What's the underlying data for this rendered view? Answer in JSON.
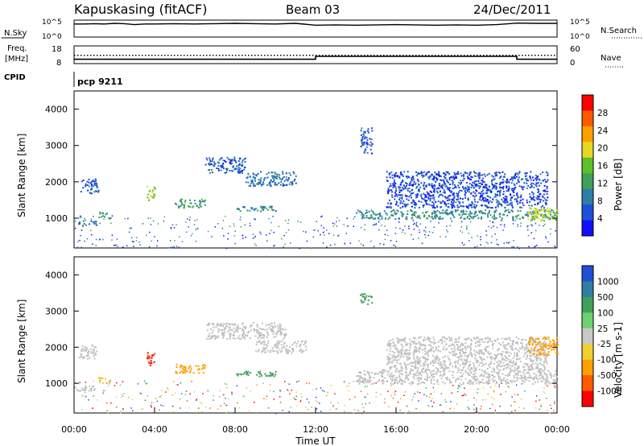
{
  "header": {
    "title": "Kapuskasing (fitACF)",
    "beam": "Beam 03",
    "date": "24/Dec/2011"
  },
  "summary": {
    "nsky_label": "N.Sky",
    "nsearch_label": "N.Search",
    "noise_ticks_left": [
      "10^5",
      "10^0"
    ],
    "noise_ticks_right": [
      "10^5",
      "10^0"
    ],
    "freq_label": "Freq.",
    "freq_unit": "[MHz]",
    "freq_ticks": [
      "18",
      "8"
    ],
    "nave_label": "Nave",
    "nave_ticks": [
      "60",
      "0"
    ],
    "cpid_label": "CPID",
    "cpid_value": "pcp 9211"
  },
  "colors": {
    "power": [
      "#1010ff",
      "#1f4fd6",
      "#2e7ea6",
      "#3fa05a",
      "#5ebf2a",
      "#e6d820",
      "#ff9f00",
      "#ff5a00",
      "#ff0000"
    ],
    "velocity": [
      "#ff0000",
      "#ff5a00",
      "#ff9f00",
      "#f0cf30",
      "#c8c8c8",
      "#6fd06f",
      "#3fa05a",
      "#2e7ea6",
      "#1f4fd6"
    ],
    "ground_scatter": "#c0c0c0"
  },
  "chart_data": [
    {
      "type": "line",
      "panel": "noise",
      "xlabel": "",
      "ylabel": "N.Sky",
      "x_range_hours": [
        0,
        24
      ],
      "series": [
        {
          "name": "N.Sky",
          "x": [
            0,
            0.5,
            1,
            1.5,
            2,
            2.5,
            3,
            3.5,
            4,
            5,
            6,
            7,
            8,
            9,
            10,
            11,
            12,
            13,
            14,
            15,
            16,
            17,
            18,
            19,
            20,
            21,
            22,
            23,
            24
          ],
          "values": [
            4,
            4,
            4.1,
            4,
            4.2,
            4.1,
            3.8,
            4,
            4,
            4.1,
            4,
            4.1,
            4.2,
            4.1,
            4,
            4.2,
            3.6,
            3.7,
            3.6,
            3.7,
            3.8,
            3.7,
            3.6,
            3.7,
            3.6,
            3.8,
            4.3,
            4.2,
            4.2
          ]
        }
      ]
    },
    {
      "type": "line",
      "panel": "frequency",
      "ylabel": "Freq. [MHz]",
      "ylim": [
        8,
        18
      ],
      "series": [
        {
          "name": "Freq.",
          "x": [
            0,
            12,
            12,
            22,
            22,
            24
          ],
          "values": [
            10.2,
            10.2,
            12,
            12,
            10.2,
            10.2
          ]
        }
      ]
    },
    {
      "type": "heatmap",
      "panel": "power",
      "ylabel": "Slant Range [km]",
      "ylim": [
        180,
        4500
      ],
      "yticks": [
        "4000",
        "3000",
        "2000",
        "1000"
      ],
      "colorbar_label": "Power [dB]",
      "colorbar_ticks": [
        "28",
        "24",
        "20",
        "16",
        "12",
        "8",
        "4"
      ],
      "patches": [
        {
          "t": [
            0.3,
            1.2
          ],
          "r": [
            1700,
            2100
          ],
          "v": 6
        },
        {
          "t": [
            0.2,
            1.1
          ],
          "r": [
            800,
            950
          ],
          "v": 8
        },
        {
          "t": [
            1.2,
            1.8
          ],
          "r": [
            1000,
            1200
          ],
          "v": 10
        },
        {
          "t": [
            3.6,
            4.0
          ],
          "r": [
            1500,
            1900
          ],
          "v": 18
        },
        {
          "t": [
            5.0,
            6.5
          ],
          "r": [
            1300,
            1550
          ],
          "v": 12
        },
        {
          "t": [
            6.5,
            8.5
          ],
          "r": [
            2250,
            2700
          ],
          "v": 6
        },
        {
          "t": [
            8.5,
            11.0
          ],
          "r": [
            1900,
            2300
          ],
          "v": 8
        },
        {
          "t": [
            8.0,
            10.0
          ],
          "r": [
            1200,
            1350
          ],
          "v": 9
        },
        {
          "t": [
            14.2,
            14.8
          ],
          "r": [
            2800,
            3500
          ],
          "v": 6
        },
        {
          "t": [
            14.0,
            24.0
          ],
          "r": [
            1000,
            1250
          ],
          "v": 10
        },
        {
          "t": [
            15.5,
            23.5
          ],
          "r": [
            1300,
            2300
          ],
          "v": 5
        },
        {
          "t": [
            22.5,
            24.0
          ],
          "r": [
            950,
            1300
          ],
          "v": 18
        }
      ]
    },
    {
      "type": "heatmap",
      "panel": "velocity",
      "ylabel": "Slant Range [km]",
      "ylim": [
        180,
        4500
      ],
      "yticks": [
        "4000",
        "3000",
        "2000",
        "1000"
      ],
      "colorbar_label": "Velocity [m s-1]",
      "colorbar_ticks": [
        "1000",
        "500",
        "100",
        "25",
        "-25",
        "-100",
        "-500",
        "-1000"
      ],
      "xticks": [
        "00:00",
        "04:00",
        "08:00",
        "12:00",
        "16:00",
        "20:00",
        "00:00"
      ],
      "xlabel": "Time UT",
      "patches": [
        {
          "t": [
            0.2,
            1.1
          ],
          "r": [
            1700,
            2100
          ],
          "v": 0,
          "gs": true
        },
        {
          "t": [
            0.0,
            1.0
          ],
          "r": [
            800,
            950
          ],
          "v": 0,
          "gs": true
        },
        {
          "t": [
            1.2,
            1.8
          ],
          "r": [
            1000,
            1200
          ],
          "v": -50
        },
        {
          "t": [
            3.6,
            4.0
          ],
          "r": [
            1500,
            1900
          ],
          "v": -1000
        },
        {
          "t": [
            5.0,
            6.5
          ],
          "r": [
            1300,
            1550
          ],
          "v": -300
        },
        {
          "t": [
            6.5,
            10.5
          ],
          "r": [
            2250,
            2700
          ],
          "v": 0,
          "gs": true
        },
        {
          "t": [
            8.0,
            10.0
          ],
          "r": [
            1200,
            1350
          ],
          "v": 200
        },
        {
          "t": [
            9.0,
            11.5
          ],
          "r": [
            1850,
            2200
          ],
          "v": 0,
          "gs": true
        },
        {
          "t": [
            14.2,
            14.8
          ],
          "r": [
            3200,
            3500
          ],
          "v": 400
        },
        {
          "t": [
            14.0,
            24.0
          ],
          "r": [
            1000,
            1400
          ],
          "v": 0,
          "gs": true
        },
        {
          "t": [
            15.5,
            23.5
          ],
          "r": [
            1400,
            2300
          ],
          "v": 0,
          "gs": true
        },
        {
          "t": [
            22.5,
            24.0
          ],
          "r": [
            1800,
            2300
          ],
          "v": -400
        }
      ]
    }
  ]
}
